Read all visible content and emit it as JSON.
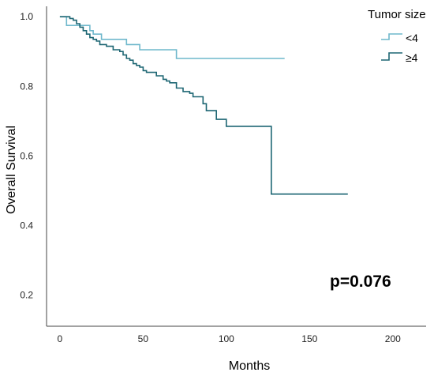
{
  "chart_data": {
    "type": "line",
    "step": true,
    "xlabel": "Months",
    "ylabel": "Overall Survival",
    "xlim": [
      -8,
      220
    ],
    "ylim": [
      0.11,
      1.03
    ],
    "xticks": [
      0,
      50,
      100,
      150,
      200
    ],
    "yticks": [
      0.2,
      0.4,
      0.6,
      0.8,
      1.0
    ],
    "xtick_labels": [
      "0",
      "50",
      "100",
      "150",
      "200"
    ],
    "ytick_labels": [
      "0.2",
      "0.4",
      "0.6",
      "0.8",
      "1.0"
    ],
    "grid": false,
    "legend_title": "Tumor size",
    "legend_position": "top-right",
    "annotation": "p=0.076",
    "series": [
      {
        "name": "<4",
        "color": "#6fb8cc",
        "x": [
          0,
          3,
          4,
          13,
          18,
          20,
          25,
          36,
          40,
          48,
          66,
          70,
          135
        ],
        "y": [
          1.0,
          1.0,
          0.975,
          0.975,
          0.96,
          0.95,
          0.935,
          0.935,
          0.92,
          0.905,
          0.905,
          0.88,
          0.88
        ]
      },
      {
        "name": "≥4",
        "color": "#1d6673",
        "x": [
          0,
          6,
          8,
          10,
          12,
          14,
          16,
          18,
          20,
          22,
          24,
          28,
          32,
          36,
          38,
          40,
          42,
          44,
          46,
          48,
          50,
          52,
          58,
          62,
          64,
          66,
          70,
          74,
          78,
          80,
          86,
          88,
          94,
          100,
          125,
          127,
          130,
          173
        ],
        "y": [
          1.0,
          0.995,
          0.99,
          0.98,
          0.97,
          0.96,
          0.95,
          0.94,
          0.935,
          0.93,
          0.92,
          0.915,
          0.905,
          0.9,
          0.89,
          0.88,
          0.875,
          0.865,
          0.86,
          0.855,
          0.845,
          0.84,
          0.83,
          0.82,
          0.815,
          0.81,
          0.795,
          0.785,
          0.78,
          0.77,
          0.75,
          0.73,
          0.705,
          0.685,
          0.685,
          0.49,
          0.49,
          0.49
        ]
      }
    ]
  }
}
